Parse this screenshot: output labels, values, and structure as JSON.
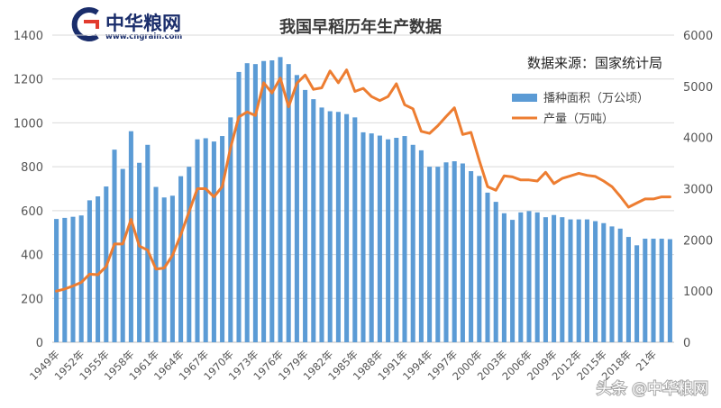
{
  "logo": {
    "name": "中华粮网",
    "url": "www.cngrain.com",
    "mark": "G"
  },
  "title": "我国早稻历年生产数据",
  "source": "数据来源：国家统计局",
  "watermark": "头条 @中华粮网",
  "colors": {
    "bar": "#5b9bd5",
    "line": "#ed7d31",
    "grid": "#d9d9d9",
    "axis": "#bfbfbf"
  },
  "chart_data": {
    "type": "bar+line",
    "title": "我国早稻历年生产数据",
    "x": [
      1949,
      1950,
      1951,
      1952,
      1953,
      1954,
      1955,
      1956,
      1957,
      1958,
      1959,
      1960,
      1961,
      1962,
      1963,
      1964,
      1965,
      1966,
      1967,
      1968,
      1969,
      1970,
      1971,
      1972,
      1973,
      1974,
      1975,
      1976,
      1977,
      1978,
      1979,
      1980,
      1981,
      1982,
      1983,
      1984,
      1985,
      1986,
      1987,
      1988,
      1989,
      1990,
      1991,
      1992,
      1993,
      1994,
      1995,
      1996,
      1997,
      1998,
      1999,
      2000,
      2001,
      2002,
      2003,
      2004,
      2005,
      2006,
      2007,
      2008,
      2009,
      2010,
      2011,
      2012,
      2013,
      2014,
      2015,
      2016,
      2017,
      2018,
      2019,
      2020,
      2021,
      2022,
      2023
    ],
    "x_tick_labels": [
      "1949年",
      "1952年",
      "1955年",
      "1958年",
      "1961年",
      "1964年",
      "1967年",
      "1970年",
      "1973年",
      "1976年",
      "1979年",
      "1982年",
      "1985年",
      "1988年",
      "1991年",
      "1994年",
      "1997年",
      "2000年",
      "2003年",
      "2006年",
      "2009年",
      "2012年",
      "2015年",
      "2018年",
      "21年"
    ],
    "x_tick_years": [
      1949,
      1952,
      1955,
      1958,
      1961,
      1964,
      1967,
      1970,
      1973,
      1976,
      1979,
      1982,
      1985,
      1988,
      1991,
      1994,
      1997,
      2000,
      2003,
      2006,
      2009,
      2012,
      2015,
      2018,
      2021
    ],
    "series": [
      {
        "name": "播种面积（万公顷）",
        "type": "bar",
        "axis": "left",
        "values": [
          562,
          567,
          572,
          578,
          647,
          665,
          710,
          878,
          790,
          962,
          818,
          900,
          708,
          660,
          668,
          757,
          800,
          925,
          930,
          915,
          940,
          1025,
          1232,
          1272,
          1268,
          1282,
          1285,
          1300,
          1268,
          1218,
          1150,
          1108,
          1070,
          1053,
          1050,
          1040,
          1025,
          957,
          952,
          942,
          925,
          932,
          940,
          900,
          875,
          800,
          800,
          820,
          825,
          815,
          780,
          758,
          682,
          640,
          588,
          558,
          592,
          598,
          592,
          570,
          580,
          570,
          560,
          560,
          560,
          552,
          543,
          528,
          518,
          480,
          442,
          472,
          472,
          472,
          470
        ]
      },
      {
        "name": "产量（万吨）",
        "type": "line",
        "axis": "right",
        "values": [
          1000,
          1040,
          1100,
          1170,
          1330,
          1320,
          1480,
          1920,
          1920,
          2400,
          1880,
          1800,
          1430,
          1450,
          1700,
          2100,
          2550,
          3000,
          3000,
          2840,
          3040,
          3800,
          4400,
          4500,
          4430,
          5070,
          4870,
          5160,
          4600,
          5060,
          5220,
          4940,
          4970,
          5300,
          5070,
          5320,
          4900,
          4960,
          4800,
          4720,
          4800,
          5050,
          4640,
          4560,
          4120,
          4080,
          4230,
          4410,
          4580,
          4060,
          4100,
          3550,
          3040,
          2970,
          3250,
          3230,
          3170,
          3170,
          3150,
          3320,
          3100,
          3200,
          3250,
          3300,
          3260,
          3240,
          3150,
          3040,
          2850,
          2640,
          2720,
          2800,
          2800,
          2840,
          2840
        ]
      }
    ],
    "y_left": {
      "min": 0,
      "max": 1400,
      "ticks": [
        0,
        200,
        400,
        600,
        800,
        1000,
        1200,
        1400
      ]
    },
    "y_right": {
      "min": 0,
      "max": 6000,
      "ticks": [
        0,
        1000,
        2000,
        3000,
        4000,
        5000,
        6000
      ]
    },
    "grid": true,
    "legend_position": "right-middle"
  }
}
